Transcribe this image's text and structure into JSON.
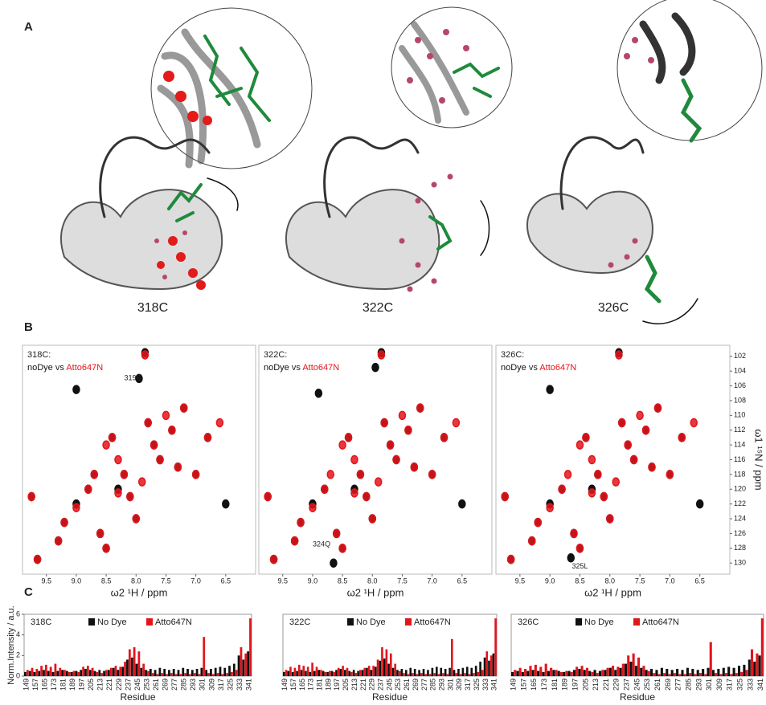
{
  "figure": {
    "panel_letters": [
      "A",
      "B",
      "C"
    ],
    "structure_labels": [
      "318C",
      "322C",
      "326C"
    ]
  },
  "chart_data": [
    {
      "type": "scatter",
      "title": "318C:",
      "legend_separator": "vs",
      "annotation": "319G",
      "annotation_x": 8.05,
      "annotation_y": 105,
      "xlabel": "ω2  ¹H / ppm",
      "xlim": [
        9.9,
        6.0
      ],
      "xticks": [
        9.5,
        {
          "value": 9,
          "label": "9.0"
        },
        8.5,
        {
          "value": 8,
          "label": "8.0"
        },
        7.5,
        {
          "value": 7,
          "label": "7.0"
        },
        6.5
      ],
      "ylim": [
        100.5,
        131.5
      ],
      "series": [
        {
          "name": "noDye",
          "color": "#111111",
          "x": [
            9.75,
            9.65,
            9.3,
            9.2,
            9.0,
            9.0,
            8.8,
            8.6,
            8.5,
            8.4,
            8.3,
            8.2,
            8.0,
            7.95,
            7.85,
            7.8,
            7.6,
            7.4,
            7.2,
            7.0,
            6.8,
            6.5,
            8.1,
            7.7,
            8.7,
            7.3
          ],
          "values": [
            121,
            129.5,
            127,
            124.5,
            106.5,
            122,
            120,
            126,
            128,
            113,
            120,
            118,
            124,
            105,
            101.5,
            111,
            116,
            112,
            109,
            118,
            113,
            122,
            121,
            114,
            118,
            117
          ]
        },
        {
          "name": "Atto647N",
          "color": "#e3151c",
          "x": [
            9.75,
            9.65,
            9.3,
            9.2,
            9.0,
            8.8,
            8.6,
            8.5,
            8.4,
            8.3,
            8.2,
            8.0,
            7.85,
            7.8,
            7.6,
            7.4,
            7.2,
            7.0,
            6.8,
            6.6,
            8.1,
            7.9,
            7.7,
            8.5,
            8.7,
            7.5,
            7.3,
            8.3
          ],
          "values": [
            121,
            129.5,
            127,
            124.5,
            122.5,
            120,
            126,
            128,
            113,
            120.5,
            118,
            124,
            101.8,
            111,
            116,
            112,
            109,
            118,
            113,
            111,
            121,
            119,
            114,
            114,
            118,
            110,
            117,
            116
          ]
        }
      ]
    },
    {
      "type": "scatter",
      "title": "322C:",
      "legend_separator": "vs",
      "annotation": "324Q",
      "annotation_x": 8.85,
      "annotation_y": 127.5,
      "xlabel": "ω2  ¹H / ppm",
      "xlim": [
        9.9,
        6.0
      ],
      "xticks": [
        9.5,
        {
          "value": 9,
          "label": "9.0"
        },
        8.5,
        {
          "value": 8,
          "label": "8.0"
        },
        7.5,
        {
          "value": 7,
          "label": "7.0"
        },
        6.5
      ],
      "ylim": [
        100.5,
        131.5
      ],
      "series": [
        {
          "name": "noDye",
          "color": "#111111",
          "x": [
            9.75,
            9.65,
            9.3,
            9.2,
            9.0,
            8.8,
            8.6,
            8.5,
            8.4,
            8.3,
            8.2,
            8.0,
            7.95,
            7.85,
            7.8,
            7.6,
            7.4,
            7.2,
            7.0,
            6.8,
            6.5,
            8.1,
            7.7,
            8.65,
            7.3,
            8.9
          ],
          "values": [
            121,
            129.5,
            127,
            124.5,
            122,
            120,
            126,
            128,
            113,
            120,
            118,
            124,
            103.5,
            101.5,
            111,
            116,
            112,
            109,
            118,
            113,
            122,
            121,
            114,
            130,
            117,
            107
          ]
        },
        {
          "name": "Atto647N",
          "color": "#e3151c",
          "x": [
            9.75,
            9.65,
            9.3,
            9.2,
            9.0,
            8.8,
            8.6,
            8.5,
            8.4,
            8.3,
            8.2,
            8.0,
            7.85,
            7.8,
            7.6,
            7.4,
            7.2,
            7.0,
            6.8,
            6.6,
            8.1,
            7.9,
            7.7,
            8.5,
            8.7,
            7.5,
            7.3,
            8.3
          ],
          "values": [
            121,
            129.5,
            127,
            124.5,
            122.5,
            120,
            126,
            128,
            113,
            120.5,
            118,
            124,
            101.8,
            111,
            116,
            112,
            109,
            118,
            113,
            111,
            121,
            119,
            114,
            114,
            118,
            110,
            117,
            116
          ]
        }
      ]
    },
    {
      "type": "scatter",
      "title": "326C:",
      "legend_separator": "vs",
      "annotation": "325L",
      "annotation_x": 8.5,
      "annotation_y": 130.5,
      "xlabel": "ω2  ¹H / ppm",
      "xlim": [
        9.9,
        6.0
      ],
      "xticks": [
        9.5,
        {
          "value": 9,
          "label": "9.0"
        },
        8.5,
        {
          "value": 8,
          "label": "8.0"
        },
        7.5,
        {
          "value": 7,
          "label": "7.0"
        },
        6.5
      ],
      "ylabel": "ω1 ¹⁵N / ppm",
      "ylim": [
        100.5,
        131.5
      ],
      "yticks": [
        102,
        104,
        106,
        108,
        110,
        112,
        114,
        116,
        118,
        120,
        122,
        124,
        126,
        128,
        130
      ],
      "series": [
        {
          "name": "noDye",
          "color": "#111111",
          "x": [
            9.75,
            9.65,
            9.3,
            9.2,
            9.0,
            9.0,
            8.8,
            8.6,
            8.5,
            8.4,
            8.3,
            8.2,
            8.0,
            7.85,
            7.8,
            7.6,
            7.4,
            7.2,
            7.0,
            6.8,
            6.5,
            8.1,
            7.7,
            8.65,
            7.3
          ],
          "values": [
            121,
            129.5,
            127,
            124.5,
            106.5,
            122,
            120,
            126,
            128,
            113,
            120,
            118,
            124,
            101.5,
            111,
            116,
            112,
            109,
            118,
            113,
            122,
            121,
            114,
            129.3,
            117
          ]
        },
        {
          "name": "Atto647N",
          "color": "#e3151c",
          "x": [
            9.75,
            9.65,
            9.3,
            9.2,
            9.0,
            8.8,
            8.6,
            8.5,
            8.4,
            8.3,
            8.2,
            8.0,
            7.85,
            7.8,
            7.6,
            7.4,
            7.2,
            7.0,
            6.8,
            6.6,
            8.1,
            7.9,
            7.7,
            8.5,
            8.7,
            7.5,
            7.3,
            8.3
          ],
          "values": [
            121,
            129.5,
            127,
            124.5,
            122.5,
            120,
            126,
            128,
            113,
            120.5,
            118,
            124,
            101.8,
            111,
            116,
            112,
            109,
            118,
            113,
            111,
            121,
            119,
            114,
            114,
            118,
            110,
            117,
            116
          ]
        }
      ]
    },
    {
      "type": "bar",
      "title": "318C",
      "xlabel": "Residue",
      "ylabel": "Norm.Intensity / a.u.",
      "ylim": [
        0,
        6
      ],
      "yticks": [
        0,
        2,
        4,
        6
      ],
      "categories": [
        "149",
        null,
        "157",
        null,
        "165",
        null,
        "173",
        null,
        "181",
        null,
        "189",
        null,
        "197",
        null,
        "205",
        null,
        "213",
        null,
        "221",
        null,
        "229",
        null,
        "237",
        null,
        "245",
        null,
        "253",
        null,
        "261",
        null,
        "269",
        null,
        "277",
        null,
        "285",
        null,
        "293",
        null,
        "301",
        null,
        "309",
        null,
        "317",
        null,
        "325",
        null,
        "333",
        null,
        "341"
      ],
      "series": [
        {
          "name": "No Dye",
          "color": "#111111",
          "values": [
            0.4,
            0.5,
            0.4,
            0.5,
            0.6,
            0.5,
            0.4,
            0.5,
            0.6,
            0.5,
            0.4,
            0.5,
            0.6,
            0.7,
            0.6,
            0.5,
            0.6,
            0.5,
            0.6,
            0.8,
            0.6,
            0.9,
            1.6,
            1.8,
            1.2,
            0.8,
            0.6,
            0.7,
            0.6,
            0.8,
            0.7,
            0.6,
            0.7,
            0.6,
            0.8,
            0.7,
            0.6,
            0.7,
            0.8,
            0.6,
            0.7,
            0.8,
            0.9,
            0.8,
            1.0,
            1.2,
            2.0,
            1.6,
            2.4
          ]
        },
        {
          "name": "Atto647N",
          "color": "#e3151c",
          "values": [
            0.6,
            0.8,
            0.7,
            1.0,
            1.1,
            0.9,
            1.2,
            0.8,
            0.6,
            0.4,
            0.5,
            0.4,
            0.9,
            1.0,
            0.8,
            0.4,
            0.3,
            0.6,
            0.8,
            1.0,
            0.9,
            1.4,
            2.6,
            2.8,
            2.4,
            1.2,
            0.5,
            0.3,
            0.2,
            0.3,
            0.2,
            0.3,
            0.2,
            0.2,
            0.3,
            0.2,
            0.3,
            0.2,
            3.8,
            0.3,
            0.2,
            0.3,
            0.2,
            0.3,
            0.4,
            0.6,
            2.8,
            2.2,
            5.6
          ]
        }
      ]
    },
    {
      "type": "bar",
      "title": "322C",
      "xlabel": "Residue",
      "ylim": [
        0,
        6
      ],
      "categories": [
        "149",
        null,
        "157",
        null,
        "165",
        null,
        "173",
        null,
        "181",
        null,
        "189",
        null,
        "197",
        null,
        "205",
        null,
        "213",
        null,
        "221",
        null,
        "229",
        null,
        "237",
        null,
        "245",
        null,
        "253",
        null,
        "261",
        null,
        "269",
        null,
        "277",
        null,
        "285",
        null,
        "293",
        null,
        "301",
        null,
        "309",
        null,
        "317",
        null,
        "325",
        null,
        "333",
        null,
        "341"
      ],
      "series": [
        {
          "name": "No Dye",
          "color": "#111111",
          "values": [
            0.4,
            0.5,
            0.4,
            0.5,
            0.6,
            0.5,
            0.4,
            0.5,
            0.6,
            0.5,
            0.4,
            0.5,
            0.6,
            0.7,
            0.6,
            0.5,
            0.6,
            0.5,
            0.6,
            0.8,
            0.6,
            0.9,
            1.5,
            1.7,
            1.2,
            0.8,
            0.6,
            0.7,
            0.6,
            0.8,
            0.7,
            0.6,
            0.7,
            0.6,
            0.8,
            0.9,
            0.8,
            0.7,
            0.8,
            0.6,
            0.7,
            0.8,
            0.9,
            0.8,
            1.0,
            1.4,
            1.8,
            1.5,
            2.2
          ]
        },
        {
          "name": "Atto647N",
          "color": "#e3151c",
          "values": [
            0.6,
            0.9,
            0.8,
            1.1,
            1.0,
            0.9,
            1.3,
            0.9,
            0.6,
            0.4,
            0.5,
            0.4,
            0.8,
            1.0,
            0.8,
            0.4,
            0.3,
            0.6,
            0.8,
            1.0,
            1.0,
            1.6,
            2.8,
            2.6,
            2.2,
            1.2,
            0.5,
            0.3,
            0.2,
            0.3,
            0.2,
            0.3,
            0.2,
            0.2,
            0.3,
            0.2,
            0.3,
            0.2,
            3.6,
            0.3,
            0.2,
            0.3,
            0.2,
            0.3,
            0.4,
            0.6,
            2.4,
            2.0,
            5.6
          ]
        }
      ]
    },
    {
      "type": "bar",
      "title": "326C",
      "xlabel": "Residue",
      "ylim": [
        0,
        6
      ],
      "categories": [
        "149",
        null,
        "157",
        null,
        "165",
        null,
        "173",
        null,
        "181",
        null,
        "189",
        null,
        "197",
        null,
        "205",
        null,
        "213",
        null,
        "221",
        null,
        "229",
        null,
        "237",
        null,
        "245",
        null,
        "253",
        null,
        "261",
        null,
        "269",
        null,
        "277",
        null,
        "285",
        null,
        "293",
        null,
        "301",
        null,
        "309",
        null,
        "317",
        null,
        "325",
        null,
        "333",
        null,
        "341"
      ],
      "series": [
        {
          "name": "No Dye",
          "color": "#111111",
          "values": [
            0.4,
            0.5,
            0.4,
            0.5,
            0.6,
            0.5,
            0.4,
            0.5,
            0.6,
            0.5,
            0.4,
            0.5,
            0.6,
            0.7,
            0.6,
            0.5,
            0.6,
            0.5,
            0.6,
            0.8,
            0.6,
            0.8,
            1.2,
            1.4,
            1.0,
            0.8,
            0.6,
            0.7,
            0.6,
            0.8,
            0.7,
            0.6,
            0.7,
            0.6,
            0.8,
            0.7,
            0.6,
            0.7,
            0.8,
            0.6,
            0.7,
            0.8,
            0.9,
            0.8,
            1.0,
            1.1,
            1.6,
            1.4,
            2.0
          ]
        },
        {
          "name": "Atto647N",
          "color": "#e3151c",
          "values": [
            0.6,
            0.8,
            0.7,
            1.0,
            1.1,
            0.9,
            1.2,
            0.8,
            0.6,
            0.4,
            0.5,
            0.4,
            0.9,
            1.0,
            0.8,
            0.4,
            0.3,
            0.6,
            0.8,
            1.0,
            0.9,
            1.2,
            2.0,
            2.2,
            1.8,
            1.0,
            0.5,
            0.3,
            0.2,
            0.3,
            0.2,
            0.3,
            0.2,
            0.2,
            0.3,
            0.2,
            0.3,
            0.2,
            3.3,
            0.3,
            0.2,
            0.3,
            0.2,
            0.3,
            0.4,
            0.6,
            2.6,
            2.2,
            5.6
          ]
        }
      ]
    }
  ]
}
